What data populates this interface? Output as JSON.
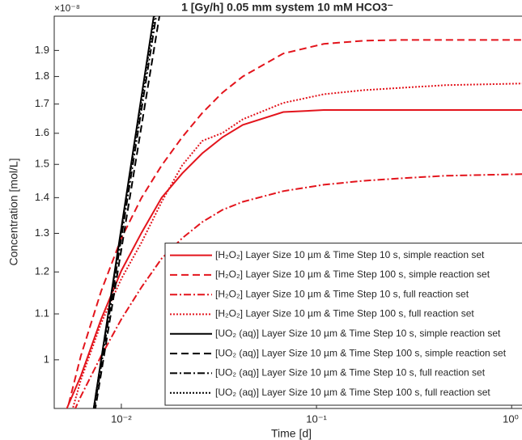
{
  "chart_data": {
    "type": "line",
    "title": "1 [Gy/h] 0.05 mm system 10 mM HCO3⁻",
    "xlabel": "Time [d]",
    "ylabel": "Concentration [mol/L]",
    "y_multiplier_label": "×10⁻⁸",
    "xscale": "log",
    "yscale": "log",
    "xlim": [
      0.00453,
      1.13
    ],
    "ylim": [
      9.04e-09,
      2.04e-08
    ],
    "xticks": [
      {
        "value": 0.01,
        "label": "10⁻²"
      },
      {
        "value": 0.1,
        "label": "10⁻¹"
      },
      {
        "value": 1,
        "label": "10⁰"
      }
    ],
    "yticks": [
      {
        "value": 1e-08,
        "label": "1"
      },
      {
        "value": 1.1e-08,
        "label": "1.1"
      },
      {
        "value": 1.2e-08,
        "label": "1.2"
      },
      {
        "value": 1.3e-08,
        "label": "1.3"
      },
      {
        "value": 1.4e-08,
        "label": "1.4"
      },
      {
        "value": 1.5e-08,
        "label": "1.5"
      },
      {
        "value": 1.6e-08,
        "label": "1.6"
      },
      {
        "value": 1.7e-08,
        "label": "1.7"
      },
      {
        "value": 1.8e-08,
        "label": "1.8"
      },
      {
        "value": 1.9e-08,
        "label": "1.9"
      }
    ],
    "legend": "lower right",
    "series": [
      {
        "name": "[H₂O₂] Layer Size 10 µm & Time Step 10 s, simple reaction set",
        "color": "#e3141c",
        "linestyle": "solid",
        "x": [
          0.00489,
          0.00537,
          0.0062,
          0.00788,
          0.01,
          0.0127,
          0.0161,
          0.0205,
          0.026,
          0.033,
          0.0419,
          0.0676,
          0.109,
          0.176,
          0.283,
          0.457,
          1.13
        ],
        "values": [
          8.77e-09,
          9.12e-09,
          9.67e-09,
          1.088e-08,
          1.203e-08,
          1.302e-08,
          1.4e-08,
          1.472e-08,
          1.535e-08,
          1.587e-08,
          1.628e-08,
          1.672e-08,
          1.679e-08,
          1.679e-08,
          1.679e-08,
          1.679e-08,
          1.679e-08
        ]
      },
      {
        "name": "[H₂O₂] Layer Size 10 µm & Time Step 100 s, simple reaction set",
        "color": "#e3141c",
        "linestyle": "dashed",
        "x": [
          0.00537,
          0.0062,
          0.00788,
          0.01,
          0.0127,
          0.0161,
          0.0205,
          0.026,
          0.033,
          0.0419,
          0.0676,
          0.109,
          0.176,
          0.283,
          0.457,
          1.13
        ],
        "values": [
          9.12e-09,
          1.008e-08,
          1.153e-08,
          1.287e-08,
          1.4e-08,
          1.497e-08,
          1.587e-08,
          1.669e-08,
          1.741e-08,
          1.8e-08,
          1.888e-08,
          1.926e-08,
          1.939e-08,
          1.942e-08,
          1.942e-08,
          1.942e-08
        ]
      },
      {
        "name": "[H₂O₂] Layer Size 10 µm & Time Step 10 s, full reaction set",
        "color": "#e3141c",
        "linestyle": "dashdot",
        "x": [
          0.00537,
          0.0062,
          0.00788,
          0.01,
          0.0127,
          0.0161,
          0.0205,
          0.026,
          0.033,
          0.0419,
          0.0676,
          0.109,
          0.176,
          0.283,
          0.457,
          1.13
        ],
        "values": [
          8.77e-09,
          9.27e-09,
          1.008e-08,
          1.088e-08,
          1.163e-08,
          1.234e-08,
          1.287e-08,
          1.331e-08,
          1.365e-08,
          1.388e-08,
          1.419e-08,
          1.438e-08,
          1.45e-08,
          1.458e-08,
          1.465e-08,
          1.47e-08
        ]
      },
      {
        "name": "[H₂O₂] Layer Size 10 µm & Time Step 100 s, full reaction set",
        "color": "#e3141c",
        "linestyle": "dotted",
        "x": [
          0.00537,
          0.0062,
          0.00788,
          0.01,
          0.0127,
          0.0161,
          0.0205,
          0.026,
          0.033,
          0.0419,
          0.0676,
          0.109,
          0.176,
          0.283,
          0.457,
          1.13
        ],
        "values": [
          8.77e-09,
          9.59e-09,
          1.079e-08,
          1.183e-08,
          1.276e-08,
          1.388e-08,
          1.497e-08,
          1.575e-08,
          1.601e-08,
          1.647e-08,
          1.704e-08,
          1.735e-08,
          1.75e-08,
          1.759e-08,
          1.768e-08,
          1.774e-08
        ]
      },
      {
        "name": "[UO₂ (aq)] Layer Size 10 µm & Time Step 10 s, simple reaction set",
        "color": "#000000",
        "linestyle": "solid",
        "x": [
          0.00703,
          0.01466
        ],
        "values": [
          8.77e-09,
          2.04e-08
        ]
      },
      {
        "name": "[UO₂ (aq)] Layer Size 10 µm & Time Step 100 s, simple reaction set",
        "color": "#000000",
        "linestyle": "dashed",
        "x": [
          0.00716,
          0.01567
        ],
        "values": [
          8.77e-09,
          2.04e-08
        ]
      },
      {
        "name": "[UO₂ (aq)] Layer Size 10 µm & Time Step 10 s, full reaction set",
        "color": "#000000",
        "linestyle": "dashdot",
        "x": [
          0.00709,
          0.01508
        ],
        "values": [
          8.77e-09,
          2.04e-08
        ]
      },
      {
        "name": "[UO₂ (aq)] Layer Size 10 µm & Time Step 100 s, full reaction set",
        "color": "#000000",
        "linestyle": "dotted",
        "x": [
          0.00703,
          0.01479
        ],
        "values": [
          8.77e-09,
          2.04e-08
        ]
      }
    ]
  }
}
